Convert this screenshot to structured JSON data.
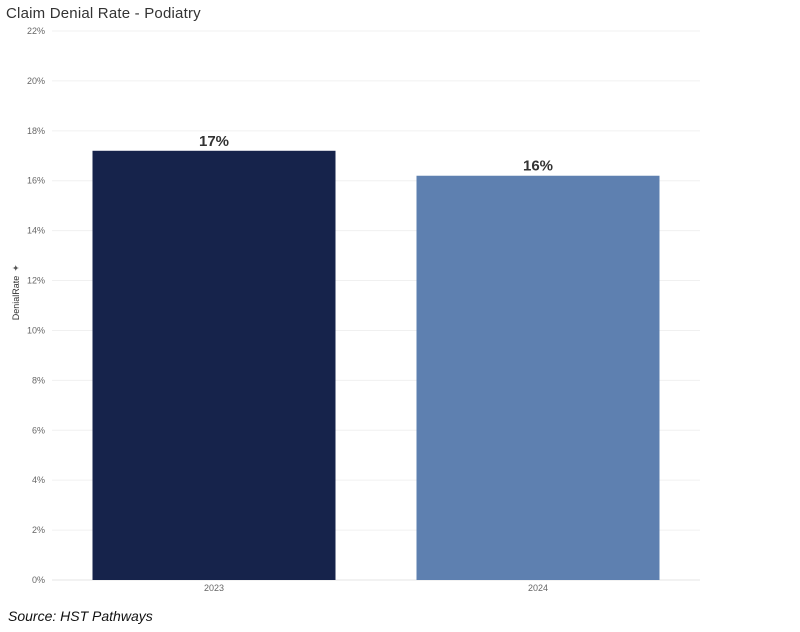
{
  "chart_data": {
    "type": "bar",
    "title": "Claim Denial Rate - Podiatry",
    "xlabel": "",
    "ylabel": "DenialRate",
    "categories": [
      "2023",
      "2024"
    ],
    "values": [
      17.2,
      16.2
    ],
    "data_labels": [
      "17%",
      "16%"
    ],
    "bar_colors": [
      "#16234b",
      "#5e80b0"
    ],
    "ylim": [
      0,
      22
    ],
    "yticks": [
      0,
      2,
      4,
      6,
      8,
      10,
      12,
      14,
      16,
      18,
      20,
      22
    ],
    "ytick_labels": [
      "0%",
      "2%",
      "4%",
      "6%",
      "8%",
      "10%",
      "12%",
      "14%",
      "16%",
      "18%",
      "20%",
      "22%"
    ],
    "grid": true,
    "legend": "none"
  },
  "source_text": "Source: HST Pathways"
}
